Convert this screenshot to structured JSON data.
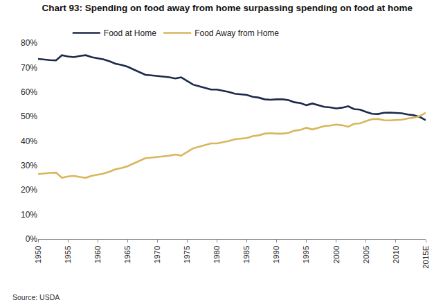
{
  "chart_data": {
    "type": "line",
    "title": "Chart 93: Spending on food away from home surpassing spending on food at home",
    "source": "Source: USDA",
    "categories": [
      "1950",
      null,
      null,
      null,
      null,
      "1955",
      null,
      null,
      null,
      null,
      "1960",
      null,
      null,
      null,
      null,
      "1965",
      null,
      null,
      null,
      null,
      "1970",
      null,
      null,
      null,
      null,
      "1975",
      null,
      null,
      null,
      null,
      "1980",
      null,
      null,
      null,
      null,
      "1985",
      null,
      null,
      null,
      null,
      "1990",
      null,
      null,
      null,
      null,
      "1995",
      null,
      null,
      null,
      null,
      "2000",
      null,
      null,
      null,
      null,
      "2005",
      null,
      null,
      null,
      null,
      "2010",
      null,
      null,
      null,
      null,
      "2015E"
    ],
    "series": [
      {
        "name": "Food at Home",
        "color": "#1b2a4a",
        "values": [
          73.5,
          73.2,
          73.0,
          72.9,
          75.0,
          74.5,
          74.2,
          74.7,
          75.0,
          74.2,
          73.8,
          73.3,
          72.5,
          71.5,
          71.0,
          70.3,
          69.2,
          68.0,
          67.0,
          66.8,
          66.6,
          66.4,
          66.0,
          65.5,
          66.0,
          64.5,
          63.0,
          62.3,
          61.7,
          61.0,
          61.0,
          60.6,
          60.0,
          59.3,
          59.0,
          58.8,
          58.0,
          57.7,
          57.0,
          56.8,
          57.0,
          57.0,
          56.7,
          55.8,
          55.5,
          54.6,
          55.3,
          54.5,
          53.9,
          53.7,
          53.3,
          53.6,
          54.2,
          53.0,
          52.8,
          51.9,
          51.1,
          51.0,
          51.5,
          51.6,
          51.5,
          51.3,
          50.8,
          50.5,
          49.8,
          48.5
        ]
      },
      {
        "name": "Food Away from Home",
        "color": "#d8b65c",
        "values": [
          26.5,
          26.8,
          27.0,
          27.1,
          25.0,
          25.5,
          25.8,
          25.3,
          25.0,
          25.8,
          26.2,
          26.7,
          27.5,
          28.5,
          29.0,
          29.7,
          30.8,
          32.0,
          33.0,
          33.2,
          33.4,
          33.6,
          34.0,
          34.5,
          34.0,
          35.5,
          37.0,
          37.7,
          38.3,
          39.0,
          39.0,
          39.4,
          40.0,
          40.7,
          41.0,
          41.2,
          42.0,
          42.3,
          43.0,
          43.2,
          43.0,
          43.0,
          43.3,
          44.2,
          44.5,
          45.4,
          44.7,
          45.5,
          46.1,
          46.3,
          46.7,
          46.4,
          45.8,
          47.0,
          47.2,
          48.1,
          48.9,
          49.0,
          48.5,
          48.4,
          48.5,
          48.7,
          49.2,
          49.5,
          50.2,
          51.5
        ]
      }
    ],
    "ylim": [
      0,
      80
    ],
    "yticks": [
      {
        "value": 0,
        "label": "0%"
      },
      {
        "value": 10,
        "label": "10%"
      },
      {
        "value": 20,
        "label": "20%"
      },
      {
        "value": 30,
        "label": "30%"
      },
      {
        "value": 40,
        "label": "40%"
      },
      {
        "value": 50,
        "label": "50%"
      },
      {
        "value": 60,
        "label": "60%"
      },
      {
        "value": 70,
        "label": "70%"
      },
      {
        "value": 80,
        "label": "80%"
      }
    ],
    "grid": false,
    "legend": "top"
  }
}
